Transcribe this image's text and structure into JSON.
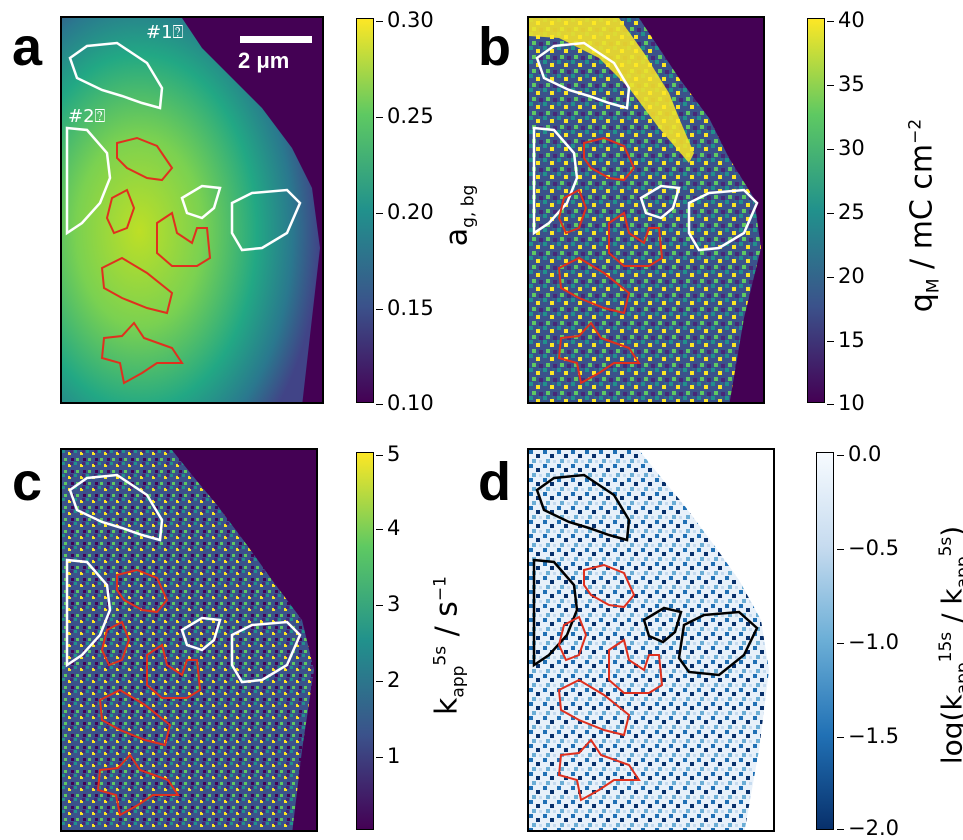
{
  "panels": [
    {
      "letter": "a",
      "cbar_title_main": "a",
      "cbar_title_sub": "g, bg",
      "ticks": [
        "0.30",
        "0.25",
        "0.20",
        "0.15",
        "0.10"
      ]
    },
    {
      "letter": "b",
      "cbar_title_main": "q",
      "cbar_title_sub": "M",
      "cbar_title_rest": " / mC cm",
      "cbar_title_sup": "−2",
      "ticks": [
        "40",
        "35",
        "30",
        "25",
        "20",
        "15",
        "10"
      ]
    },
    {
      "letter": "c",
      "cbar_title_main": "k",
      "cbar_title_sub": "app",
      "cbar_title_sup": "5s",
      "cbar_title_rest": " / s",
      "cbar_title_sup2": "−1",
      "ticks": [
        "5",
        "4",
        "3",
        "2",
        "1"
      ]
    },
    {
      "letter": "d",
      "cbar_title_pre": "log(k",
      "cbar_title_sub1": "app",
      "cbar_title_sup1": "15s",
      "cbar_title_mid": " / k",
      "cbar_title_sub2": "app",
      "cbar_title_sup2": "5s",
      "cbar_title_end": ")",
      "ticks": [
        "0.0",
        "−0.5",
        "−1.0",
        "−1.5",
        "−2.0"
      ]
    }
  ],
  "scalebar": {
    "label": "2 μm"
  },
  "regions": {
    "label1": "#1⍰",
    "label2": "#2⍰"
  },
  "colors": {
    "viridis_dark": "#440154",
    "viridis_mid": "#21918c",
    "viridis_bright": "#fde725",
    "roi_red": "#e0301e",
    "roi_white": "#ffffff",
    "roi_black": "#000000",
    "blues_dark": "#08306b"
  }
}
